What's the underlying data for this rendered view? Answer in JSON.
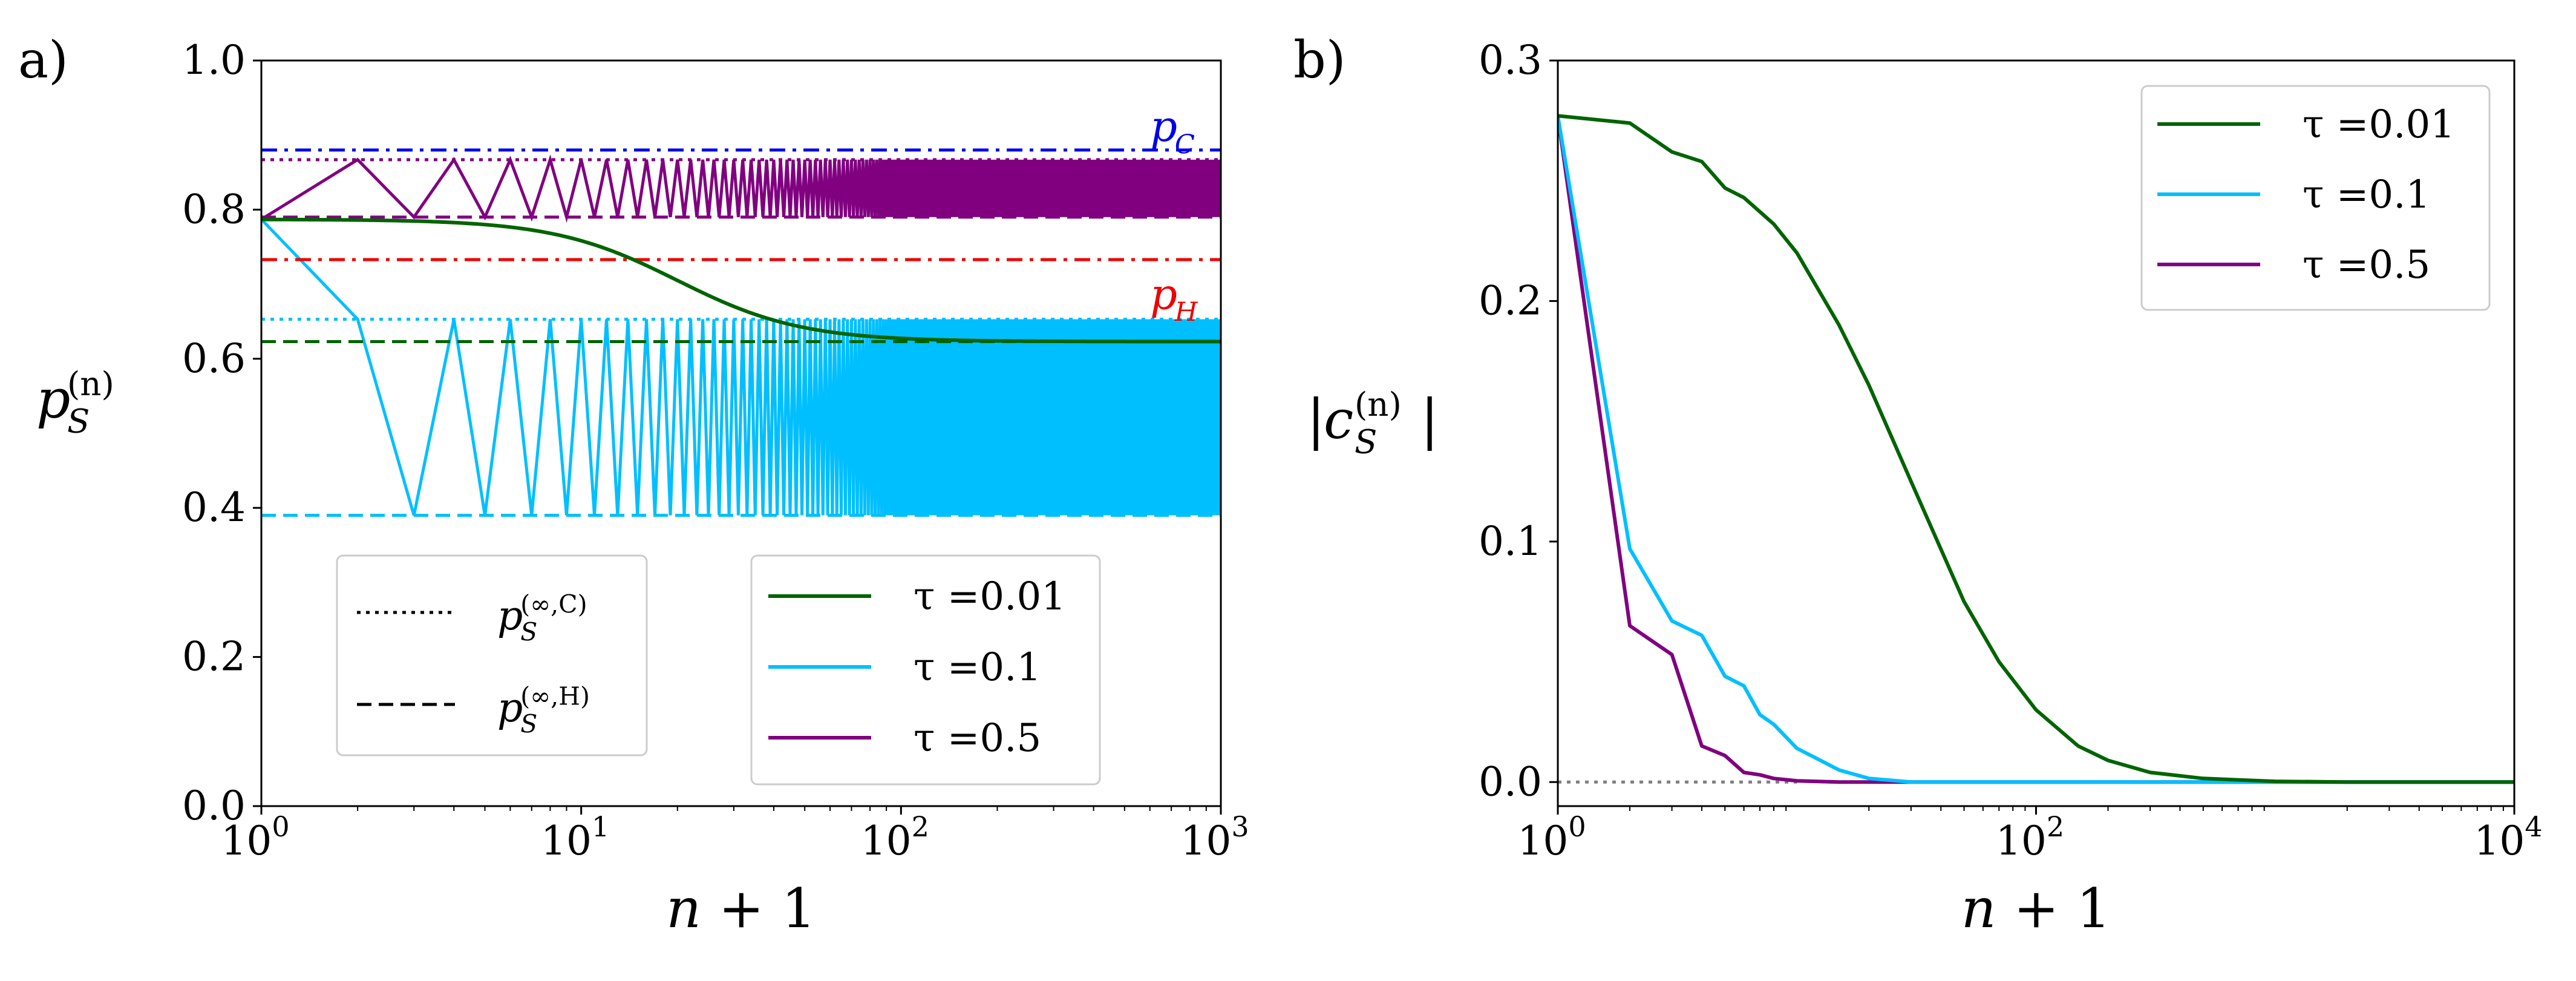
{
  "chart_data": [
    {
      "panel_label": "a)",
      "type": "line",
      "xscale": "log",
      "xlim": [
        1,
        1000
      ],
      "ylim": [
        0,
        1
      ],
      "xlabel": "n + 1",
      "ylabel": "p_S^(n)",
      "ylabel_main": "p",
      "ylabel_sub": "S",
      "ylabel_sup": "(n)",
      "xticks": [
        {
          "value": 1,
          "base": "10",
          "exp": "0"
        },
        {
          "value": 10,
          "base": "10",
          "exp": "1"
        },
        {
          "value": 100,
          "base": "10",
          "exp": "2"
        },
        {
          "value": 1000,
          "base": "10",
          "exp": "3"
        }
      ],
      "yticks": [
        {
          "value": 0,
          "label": "0.0"
        },
        {
          "value": 0.2,
          "label": "0.2"
        },
        {
          "value": 0.4,
          "label": "0.4"
        },
        {
          "value": 0.6,
          "label": "0.6"
        },
        {
          "value": 0.8,
          "label": "0.8"
        },
        {
          "value": 1.0,
          "label": "1.0"
        }
      ],
      "grid": false,
      "hlines": [
        {
          "name": "p_C",
          "y": 0.88,
          "style": "dashdot",
          "color": "#0000ee"
        },
        {
          "name": "p_H",
          "y": 0.733,
          "style": "dashdot",
          "color": "#ee0000"
        },
        {
          "y": 0.867,
          "style": "dotted",
          "color": "#800080"
        },
        {
          "y": 0.79,
          "style": "dashed",
          "color": "#800080"
        },
        {
          "y": 0.653,
          "style": "dotted",
          "color": "#00bfff"
        },
        {
          "y": 0.39,
          "style": "dashed",
          "color": "#00bfff"
        },
        {
          "y": 0.623,
          "style": "dashed",
          "color": "#006400"
        }
      ],
      "annotations": [
        {
          "text_main": "p",
          "text_sub": "C",
          "color": "#0000ee",
          "x": 700,
          "y": 0.9
        },
        {
          "text_main": "p",
          "text_sub": "H",
          "color": "#ee0000",
          "x": 700,
          "y": 0.675
        }
      ],
      "series": [
        {
          "name": "τ =0.01",
          "color": "#006400",
          "kind": "smooth",
          "start": 0.787,
          "limit": 0.623,
          "midpoint_n1": 20,
          "width": 0.55
        },
        {
          "name": "τ =0.1",
          "color": "#00bfff",
          "kind": "oscillating",
          "first": 0.787,
          "high": 0.653,
          "low": 0.39
        },
        {
          "name": "τ =0.5",
          "color": "#800080",
          "kind": "oscillating",
          "first": 0.787,
          "high": 0.867,
          "low": 0.79
        }
      ],
      "style_legend": {
        "placement": "lower-left",
        "entries": [
          {
            "style": "dotted",
            "main": "p",
            "sub": "S",
            "sup": "(∞,C)"
          },
          {
            "style": "dashed",
            "main": "p",
            "sub": "S",
            "sup": "(∞,H)"
          }
        ]
      },
      "series_legend": {
        "placement": "lower-right"
      }
    },
    {
      "panel_label": "b)",
      "type": "line",
      "xscale": "log",
      "xlim": [
        1,
        10000
      ],
      "ylim": [
        -0.01,
        0.3
      ],
      "xlabel": "n + 1",
      "ylabel": "|c_S^(n)|",
      "ylabel_main": "c",
      "ylabel_sub": "S",
      "ylabel_sup": "(n)",
      "xticks": [
        {
          "value": 1,
          "base": "10",
          "exp": "0"
        },
        {
          "value": 100,
          "base": "10",
          "exp": "2"
        },
        {
          "value": 10000,
          "base": "10",
          "exp": "4"
        }
      ],
      "yticks": [
        {
          "value": 0,
          "label": "0.0"
        },
        {
          "value": 0.1,
          "label": "0.1"
        },
        {
          "value": 0.2,
          "label": "0.2"
        },
        {
          "value": 0.3,
          "label": "0.3"
        }
      ],
      "grid": false,
      "hlines": [
        {
          "y": 0,
          "style": "dotted",
          "color": "#808080",
          "x_end": 10
        }
      ],
      "series": [
        {
          "name": "τ =0.01",
          "color": "#006400",
          "start": 0.277,
          "points": [
            [
              1,
              0.277
            ],
            [
              2,
              0.274
            ],
            [
              3,
              0.262
            ],
            [
              4,
              0.258
            ],
            [
              5,
              0.247
            ],
            [
              6,
              0.243
            ],
            [
              8,
              0.232
            ],
            [
              10,
              0.22
            ],
            [
              15,
              0.19
            ],
            [
              20,
              0.165
            ],
            [
              30,
              0.125
            ],
            [
              50,
              0.075
            ],
            [
              70,
              0.05
            ],
            [
              100,
              0.03
            ],
            [
              150,
              0.015
            ],
            [
              200,
              0.009
            ],
            [
              300,
              0.004
            ],
            [
              500,
              0.0015
            ],
            [
              1000,
              0.0003
            ],
            [
              2000,
              0
            ],
            [
              10000,
              0
            ]
          ]
        },
        {
          "name": "τ =0.1",
          "color": "#00bfff",
          "start": 0.277,
          "points": [
            [
              1,
              0.277
            ],
            [
              2,
              0.097
            ],
            [
              3,
              0.067
            ],
            [
              4,
              0.061
            ],
            [
              5,
              0.044
            ],
            [
              6,
              0.04
            ],
            [
              7,
              0.028
            ],
            [
              8,
              0.024
            ],
            [
              10,
              0.014
            ],
            [
              12,
              0.01
            ],
            [
              15,
              0.005
            ],
            [
              20,
              0.0015
            ],
            [
              30,
              0
            ],
            [
              10000,
              0
            ]
          ]
        },
        {
          "name": "τ =0.5",
          "color": "#800080",
          "start": 0.277,
          "points": [
            [
              1,
              0.277
            ],
            [
              2,
              0.065
            ],
            [
              3,
              0.053
            ],
            [
              4,
              0.015
            ],
            [
              5,
              0.011
            ],
            [
              6,
              0.004
            ],
            [
              7,
              0.003
            ],
            [
              8,
              0.0015
            ],
            [
              10,
              0.0005
            ],
            [
              15,
              0
            ],
            [
              10000,
              0
            ]
          ]
        }
      ],
      "series_legend": {
        "placement": "upper-right"
      }
    }
  ]
}
